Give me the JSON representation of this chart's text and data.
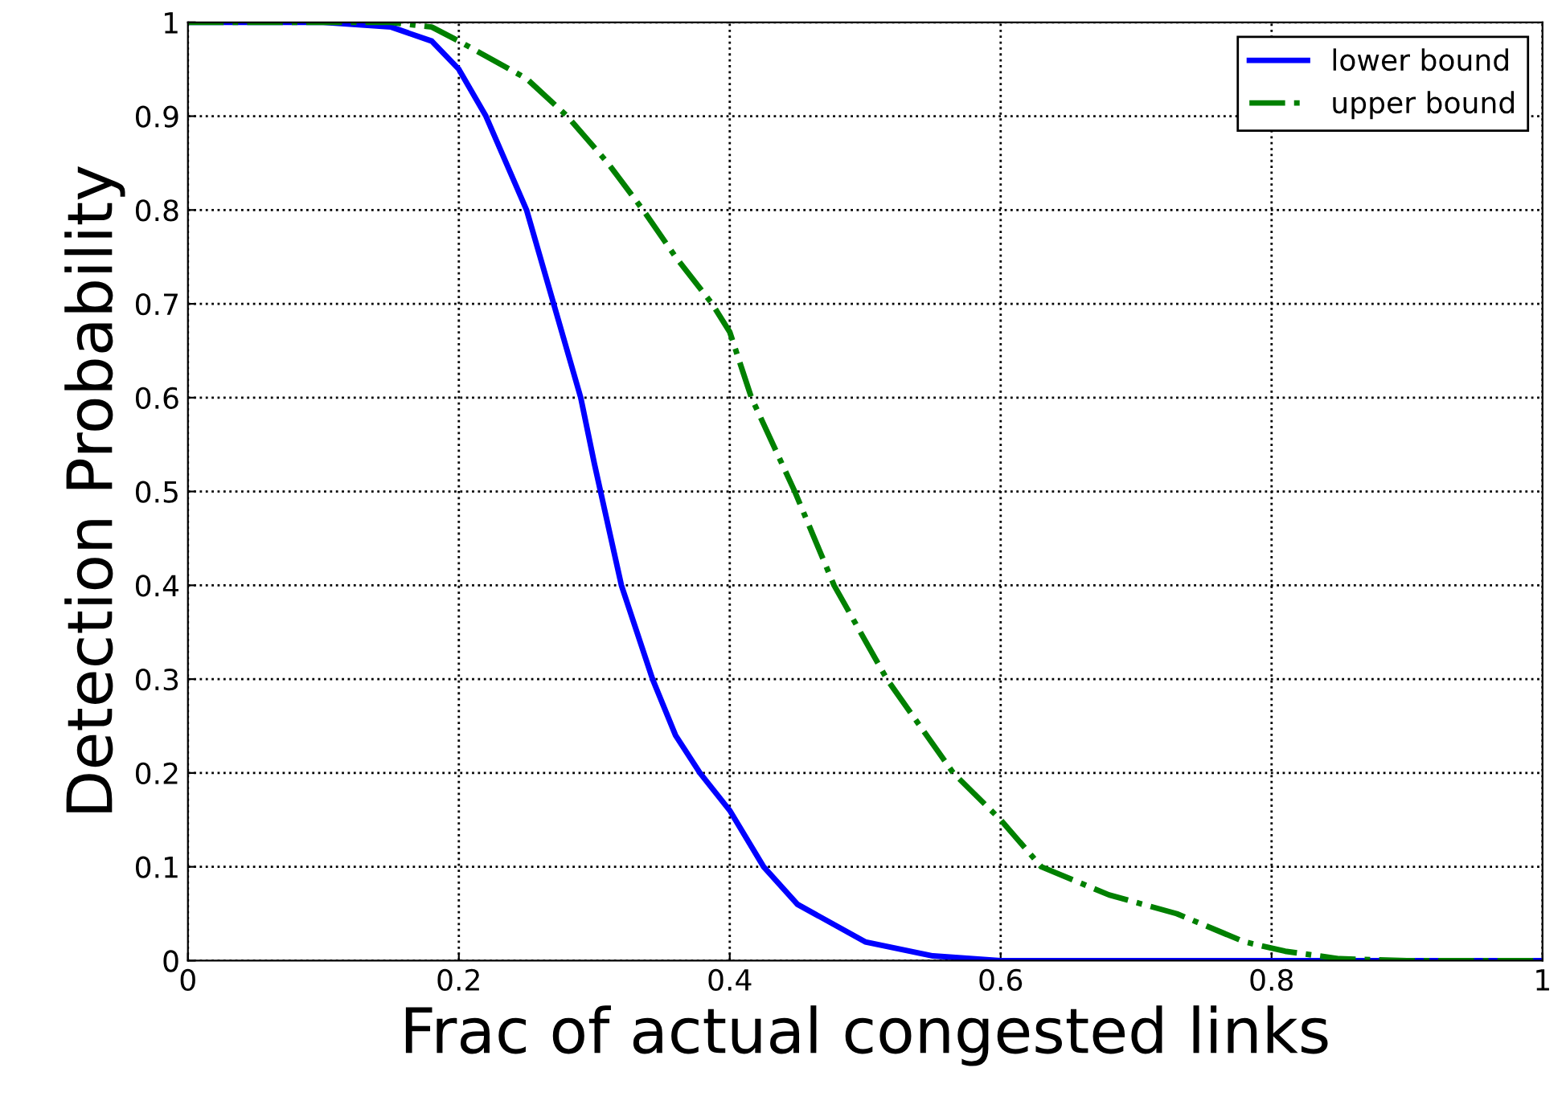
{
  "chart_data": {
    "type": "line",
    "xlabel": "Frac of actual congested links",
    "ylabel": "Detection Probability",
    "xlim": [
      0,
      1
    ],
    "ylim": [
      0,
      1
    ],
    "xticks": [
      0,
      0.2,
      0.4,
      0.6,
      0.8,
      1
    ],
    "yticks": [
      0,
      0.1,
      0.2,
      0.3,
      0.4,
      0.5,
      0.6,
      0.7,
      0.8,
      0.9,
      1
    ],
    "grid": true,
    "legend": "top right",
    "marker": "none",
    "series": [
      {
        "name": "lower bound",
        "color": "#0000ff",
        "line_style": "solid",
        "x": [
          0,
          0.1,
          0.15,
          0.18,
          0.2,
          0.22,
          0.25,
          0.27,
          0.29,
          0.3,
          0.32,
          0.343,
          0.36,
          0.378,
          0.4,
          0.425,
          0.45,
          0.5,
          0.55,
          0.6,
          0.7,
          0.8,
          0.9,
          1
        ],
        "values": [
          1,
          1,
          0.995,
          0.98,
          0.95,
          0.9,
          0.8,
          0.7,
          0.6,
          0.53,
          0.4,
          0.3,
          0.24,
          0.2,
          0.16,
          0.1,
          0.06,
          0.02,
          0.005,
          0,
          0,
          0,
          0,
          0
        ]
      },
      {
        "name": "upper bound",
        "color": "#008000",
        "line_style": "dashdot",
        "x": [
          0,
          0.1,
          0.15,
          0.18,
          0.2,
          0.25,
          0.28,
          0.31,
          0.336,
          0.36,
          0.387,
          0.4,
          0.416,
          0.448,
          0.477,
          0.516,
          0.565,
          0.6,
          0.63,
          0.68,
          0.73,
          0.78,
          0.81,
          0.85,
          0.9,
          1
        ],
        "values": [
          1,
          1,
          1,
          0.995,
          0.98,
          0.94,
          0.9,
          0.85,
          0.8,
          0.75,
          0.7,
          0.67,
          0.6,
          0.5,
          0.4,
          0.3,
          0.2,
          0.15,
          0.1,
          0.07,
          0.05,
          0.02,
          0.01,
          0.002,
          0,
          0
        ]
      }
    ]
  }
}
